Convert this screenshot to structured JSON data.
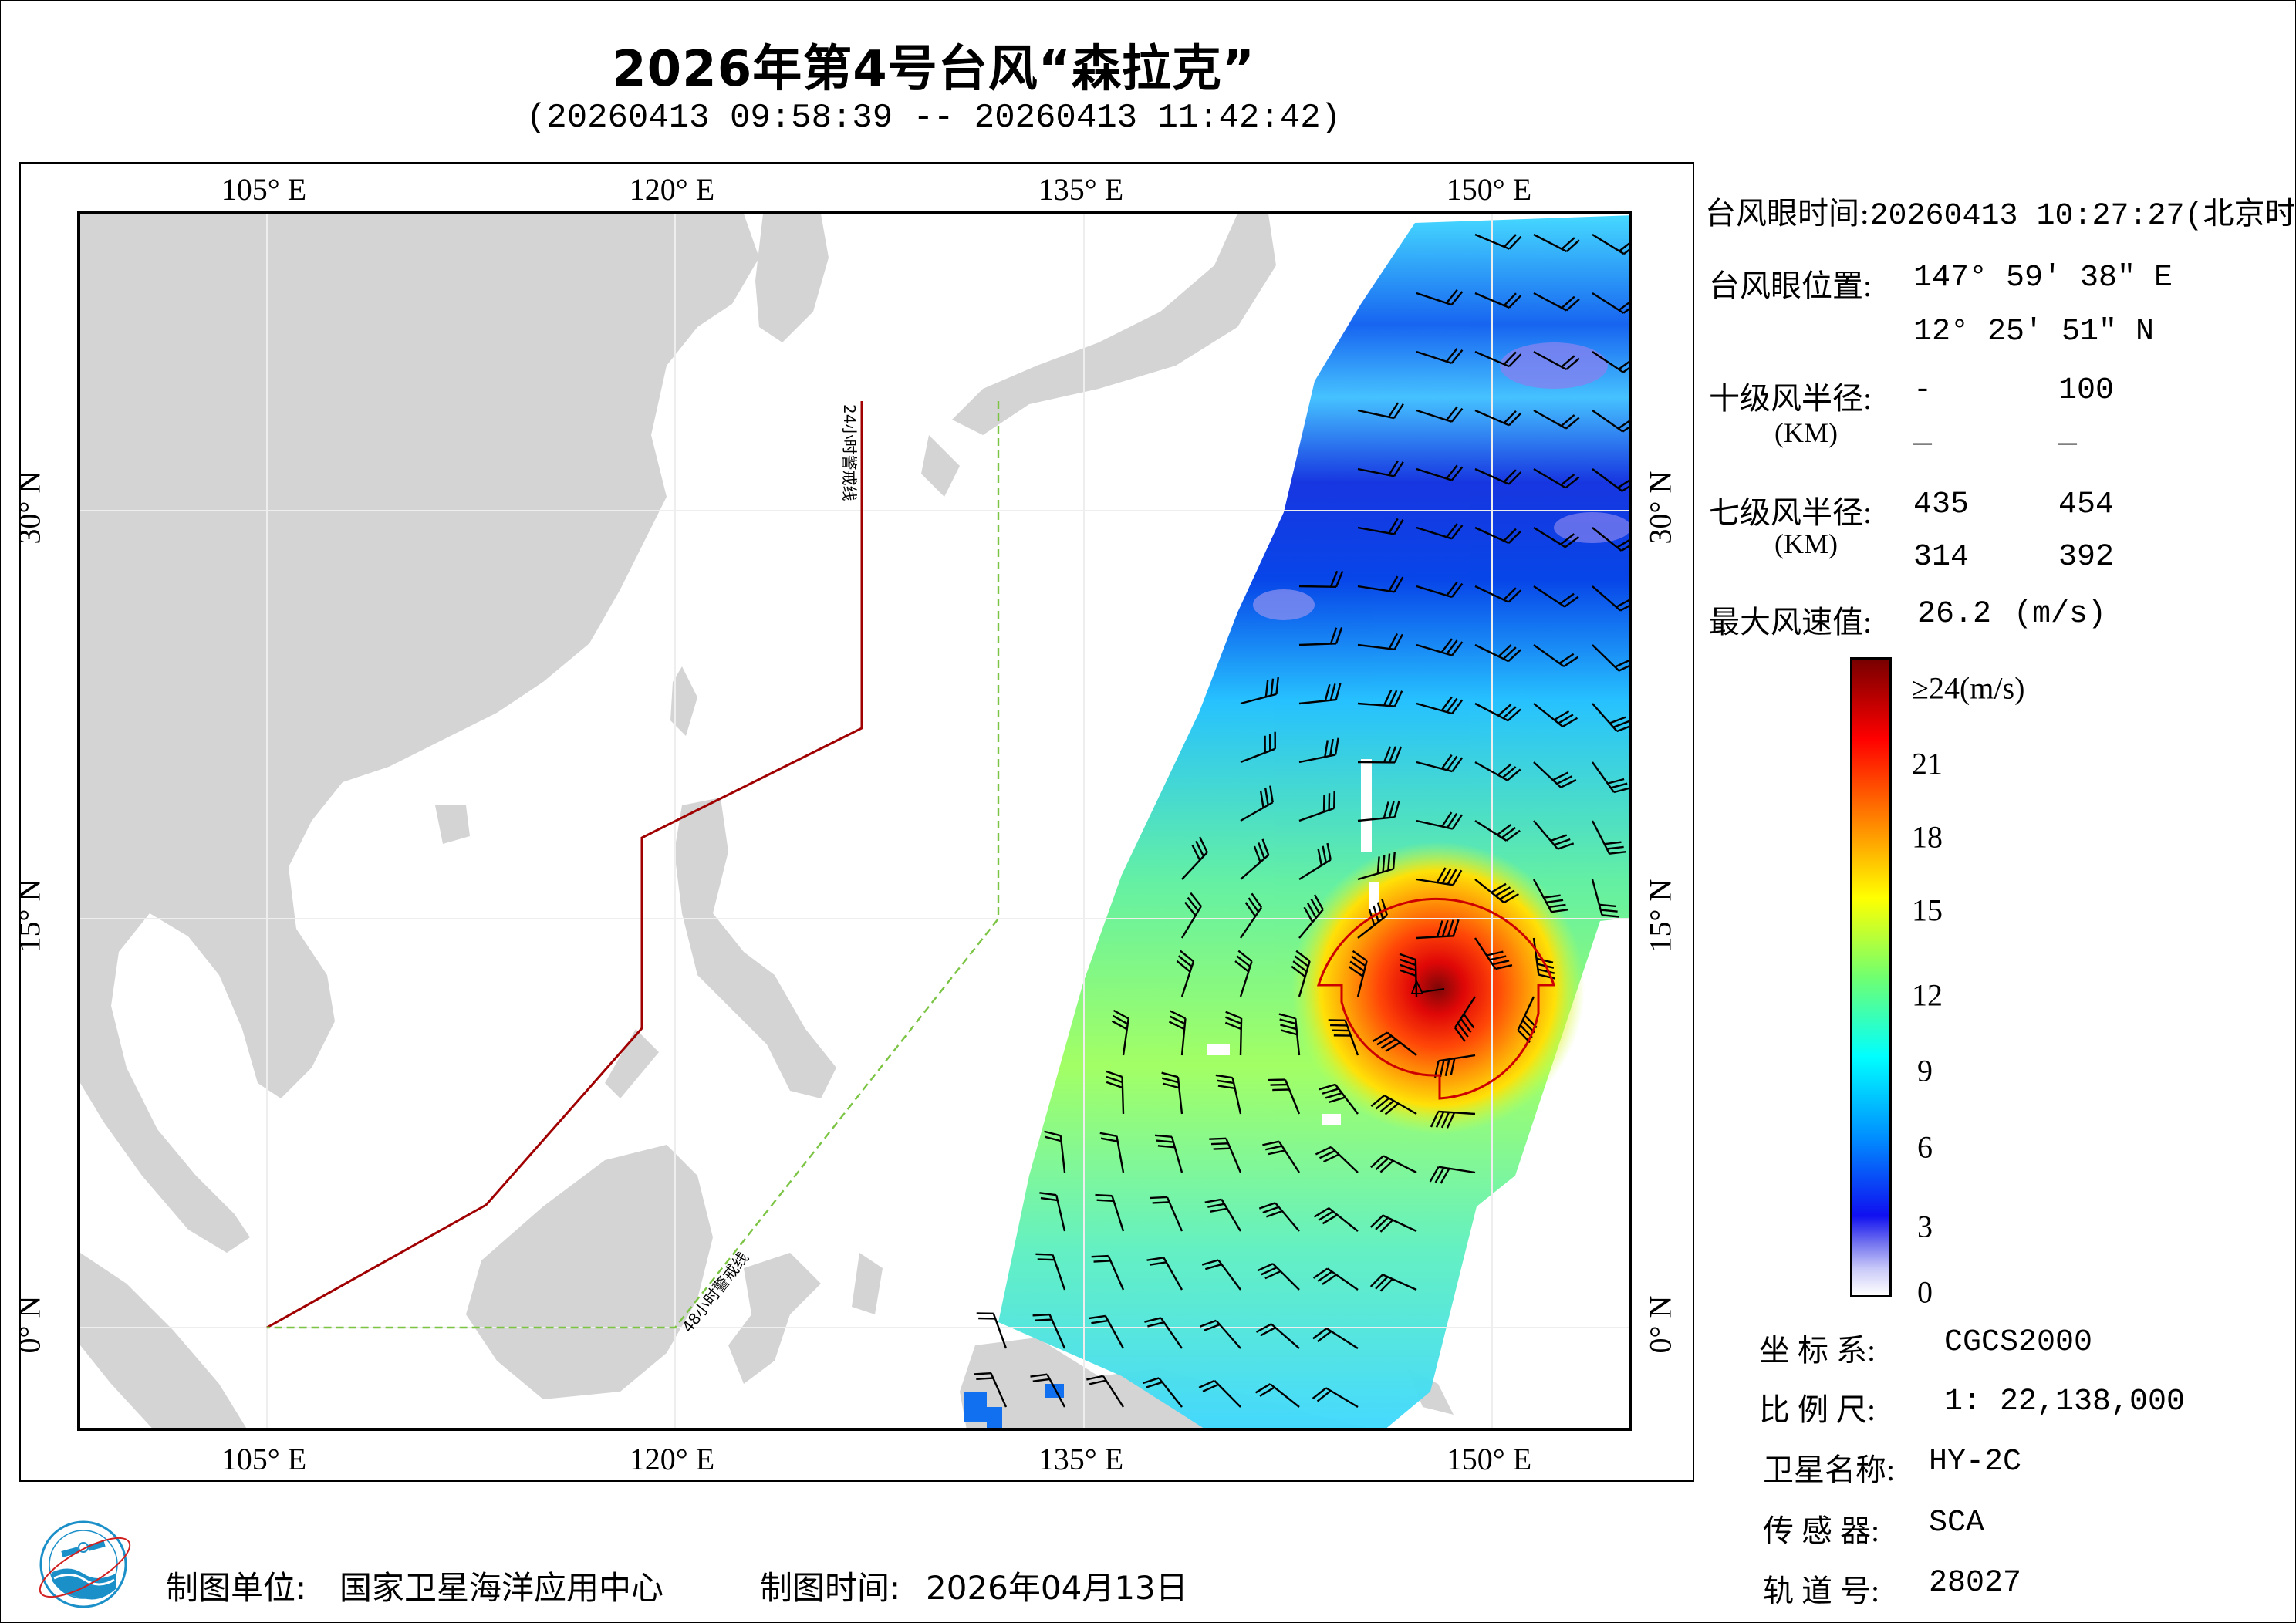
{
  "header": {
    "title": "2026年第4号台风“森拉克”",
    "subtitle": "(20260413 09:58:39 -- 20260413 11:42:42)"
  },
  "map": {
    "lon_ticks": [
      {
        "label": "105° E",
        "value": 105
      },
      {
        "label": "120° E",
        "value": 120
      },
      {
        "label": "135° E",
        "value": 135
      },
      {
        "label": "150° E",
        "value": 150
      }
    ],
    "lat_ticks": [
      {
        "label": "30° N",
        "value": 30
      },
      {
        "label": "15° N",
        "value": 15
      },
      {
        "label": "0° N",
        "value": 0
      }
    ],
    "extent": {
      "lon_min": 98.1,
      "lon_max": 155.2,
      "lat_min": -3.9,
      "lat_max": 40.9
    },
    "land_color": "#d4d4d4",
    "warning_lines": [
      {
        "label": "24小时警戒线",
        "color": "#a00000",
        "style": "solid",
        "points": [
          [
            127,
            34
          ],
          [
            127,
            22
          ],
          [
            119,
            18
          ],
          [
            119,
            11
          ],
          [
            113,
            4.5
          ],
          [
            105,
            0
          ]
        ]
      },
      {
        "label": "48小时警戒线",
        "color": "#7cc444",
        "style": "dashed",
        "points": [
          [
            132,
            34
          ],
          [
            132,
            15
          ],
          [
            120,
            0
          ],
          [
            105,
            0
          ]
        ]
      }
    ],
    "typhoon_eye": {
      "lon": 147.994,
      "lat": 12.431,
      "marker_color": "#000000"
    },
    "wind_radius_outline_color": "#cc0000"
  },
  "info_panel": {
    "eye_time_label": "台风眼时间:",
    "eye_time_value": "20260413 10:27:27(北京时)",
    "eye_pos_label": "台风眼位置:",
    "eye_lon": "147° 59′ 38″ E",
    "eye_lat": "12° 25′ 51″ N",
    "r10_label": "十级风半径:",
    "r10_unit": "(KM)",
    "r10_values": [
      "-",
      "100",
      "_",
      "_"
    ],
    "r7_label": "七级风半径:",
    "r7_unit": "(KM)",
    "r7_values": [
      "435",
      "454",
      "314",
      "392"
    ],
    "max_wind_label": "最大风速值:",
    "max_wind_value": "26.2",
    "max_wind_unit": "(m/s)"
  },
  "colorbar": {
    "labels": [
      "≥24(m/s)",
      "21",
      "18",
      "15",
      "12",
      "9",
      "6",
      "3",
      "0"
    ],
    "stops": [
      {
        "v": 0,
        "c": "#ffffff"
      },
      {
        "v": 1,
        "c": "#c8c8f8"
      },
      {
        "v": 2,
        "c": "#7070f0"
      },
      {
        "v": 3,
        "c": "#1010f0"
      },
      {
        "v": 6,
        "c": "#0090ff"
      },
      {
        "v": 9,
        "c": "#00ffff"
      },
      {
        "v": 12,
        "c": "#70ff70"
      },
      {
        "v": 15,
        "c": "#ffff00"
      },
      {
        "v": 18,
        "c": "#ff8000"
      },
      {
        "v": 21,
        "c": "#ff0000"
      },
      {
        "v": 24,
        "c": "#780000"
      }
    ]
  },
  "meta_panel": {
    "crs_label": "坐 标 系:",
    "crs_value": "CGCS2000",
    "scale_label": "比 例 尺:",
    "scale_value": "1: 22,138,000",
    "satellite_label": "卫星名称:",
    "satellite_value": "HY-2C",
    "sensor_label": "传 感 器:",
    "sensor_value": "SCA",
    "orbit_label": "轨 道 号:",
    "orbit_value": "28027"
  },
  "footer": {
    "producer_label": "制图单位:",
    "producer_value": "国家卫星海洋应用中心",
    "date_label": "制图时间:",
    "date_value": "2026年04月13日",
    "logo": "nsoas-logo-icon"
  }
}
